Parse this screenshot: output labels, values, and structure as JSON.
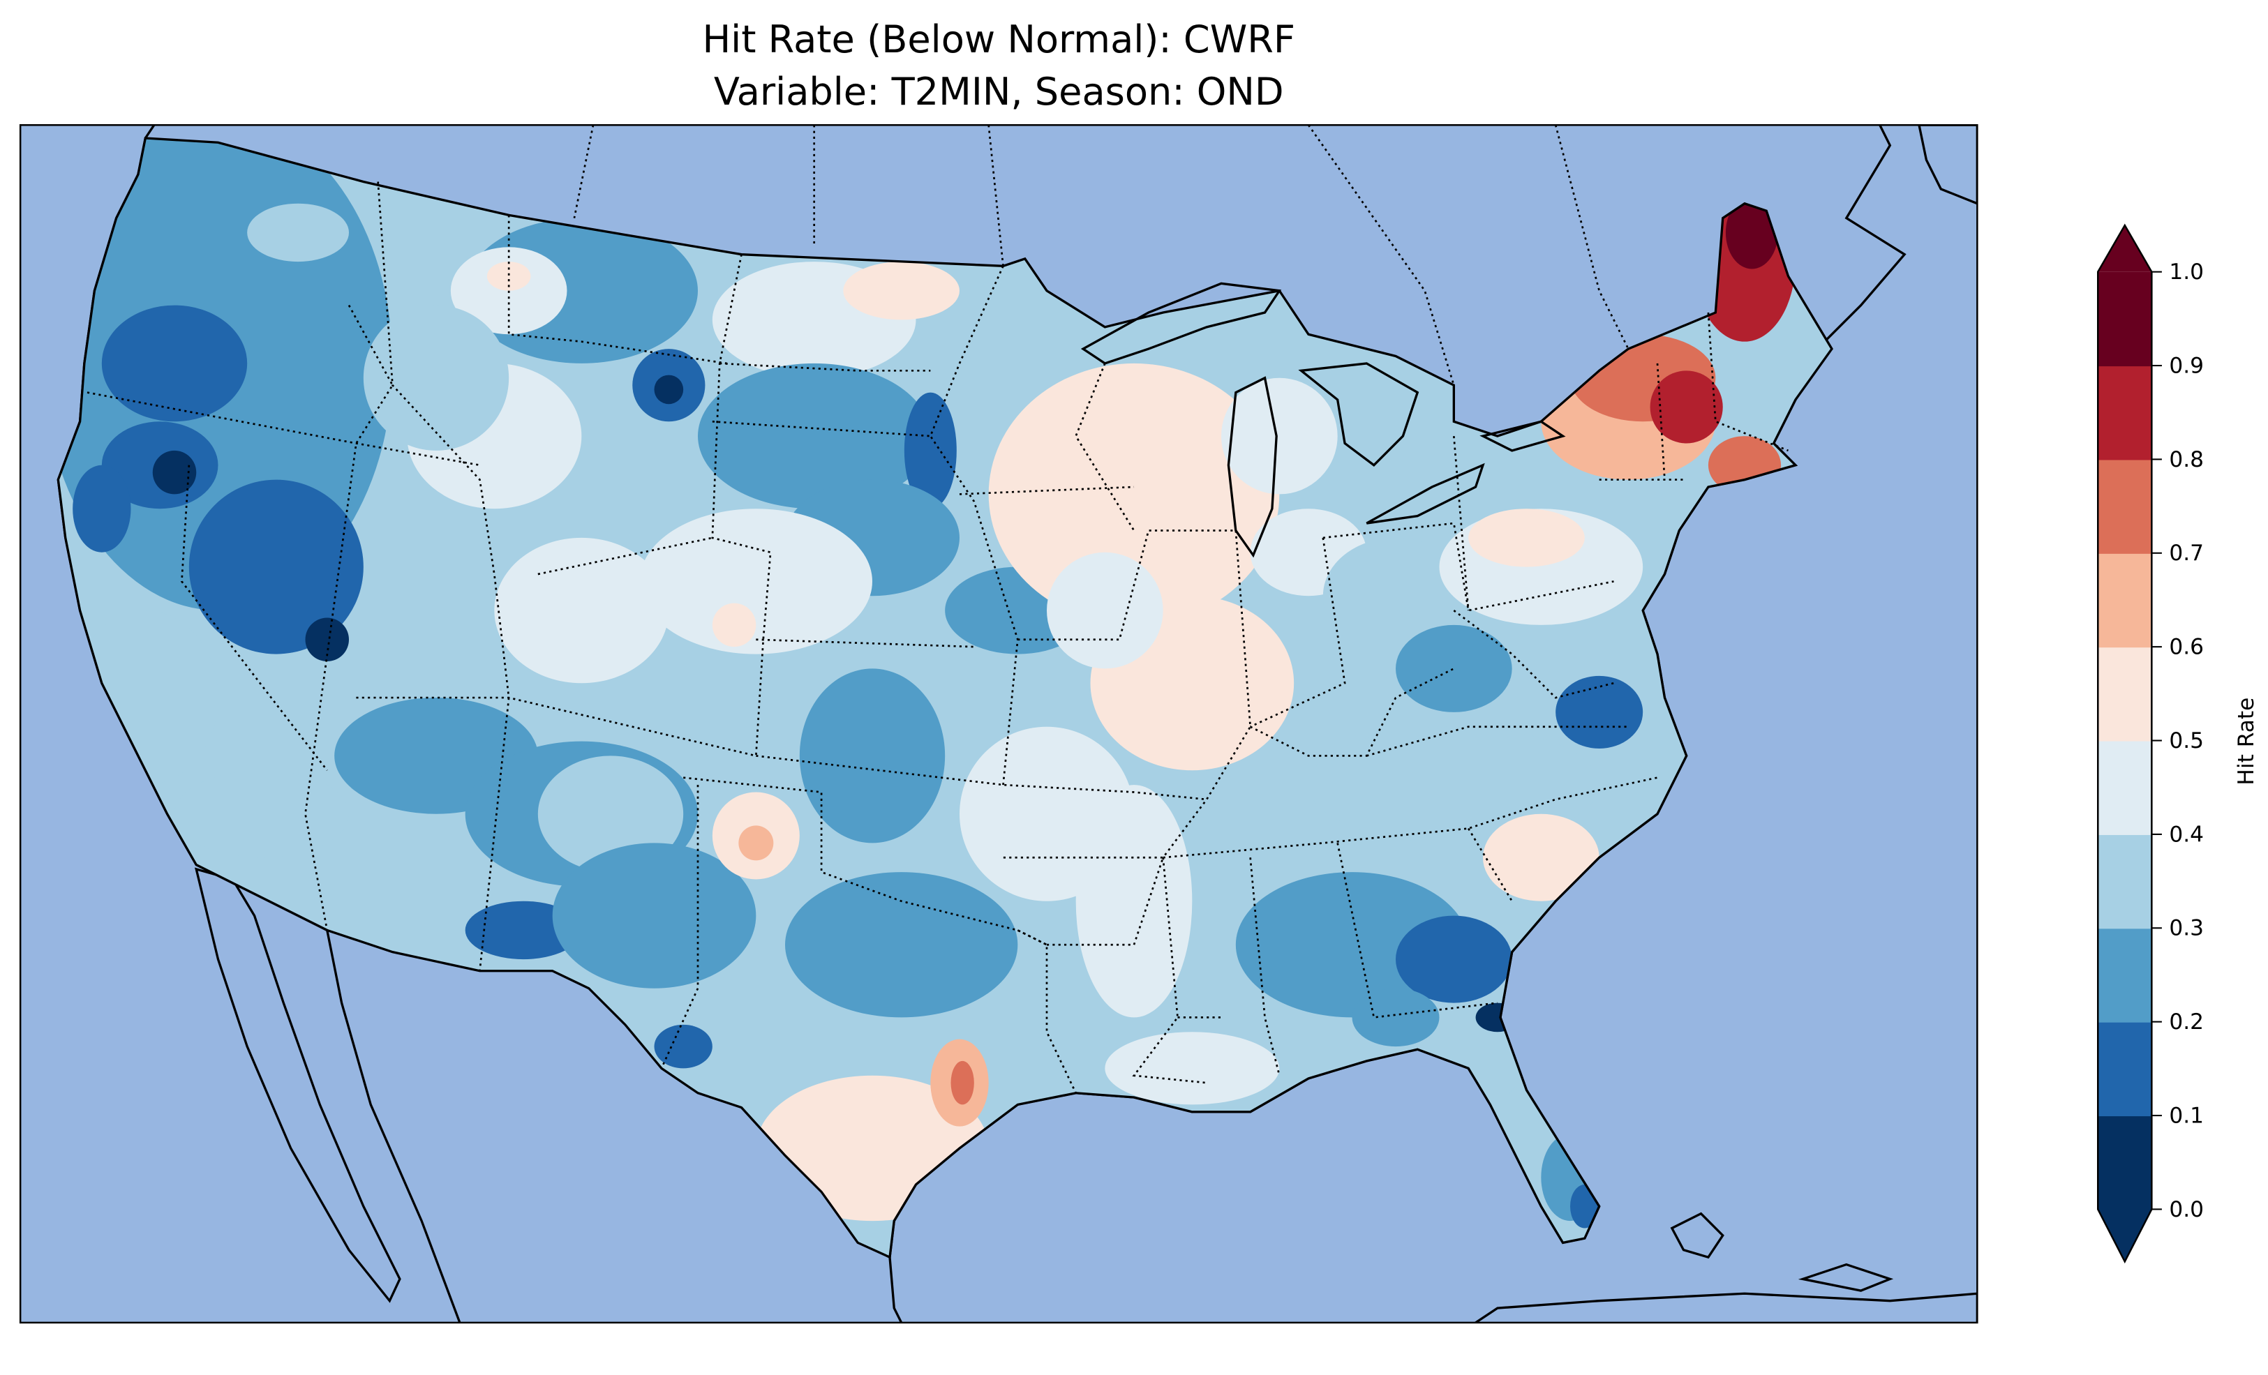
{
  "title": {
    "line1": "Hit Rate (Below Normal): CWRF",
    "line2": "Variable: T2MIN, Season: OND"
  },
  "colors": {
    "ocean": "#97b6e1",
    "land": "#efefdb",
    "lakes": "#97b6e1"
  },
  "colorbar": {
    "label": "Hit Rate",
    "min": 0.0,
    "max": 1.0,
    "extend": "both",
    "ticks": [
      "0.0",
      "0.1",
      "0.2",
      "0.3",
      "0.4",
      "0.5",
      "0.6",
      "0.7",
      "0.8",
      "0.9",
      "1.0"
    ],
    "levels": [
      {
        "range": [
          0.0,
          0.1
        ],
        "color": "#053061"
      },
      {
        "range": [
          0.1,
          0.2
        ],
        "color": "#2166ac"
      },
      {
        "range": [
          0.2,
          0.3
        ],
        "color": "#529dc8"
      },
      {
        "range": [
          0.3,
          0.4
        ],
        "color": "#a7d0e4"
      },
      {
        "range": [
          0.4,
          0.5
        ],
        "color": "#e0ecf3"
      },
      {
        "range": [
          0.5,
          0.6
        ],
        "color": "#fae6dc"
      },
      {
        "range": [
          0.6,
          0.7
        ],
        "color": "#f6b799"
      },
      {
        "range": [
          0.7,
          0.8
        ],
        "color": "#dc6f58"
      },
      {
        "range": [
          0.8,
          0.9
        ],
        "color": "#b2202e"
      },
      {
        "range": [
          0.9,
          1.0
        ],
        "color": "#67001f"
      }
    ]
  }
}
